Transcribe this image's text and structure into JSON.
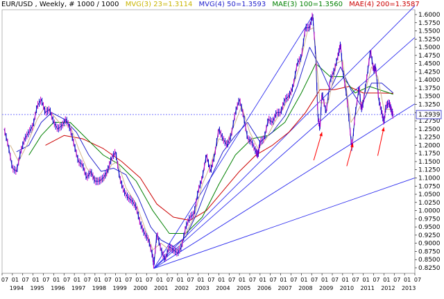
{
  "header": {
    "title": "EUR/USD , Weekly, # 1000 / 1000",
    "indicators": [
      {
        "text": "MVG(3) 23=1.3114",
        "color": "#c8b400"
      },
      {
        "text": "MVG(4) 50=1.3593",
        "color": "#2222cc"
      },
      {
        "text": "MAE(3) 100=1.3560",
        "color": "#008000"
      },
      {
        "text": "MAE(4) 200=1.3587",
        "color": "#cc0000"
      }
    ]
  },
  "chart_data": {
    "type": "line",
    "instrument": "EUR/USD",
    "ylim": [
      0.8125,
      1.6125
    ],
    "y_ticks": [
      "1.6000",
      "1.5750",
      "1.5500",
      "1.5250",
      "1.5000",
      "1.4750",
      "1.4500",
      "1.4250",
      "1.4000",
      "1.3750",
      "1.3500",
      "1.3250",
      "1.3000",
      "1.2750",
      "1.2500",
      "1.2250",
      "1.2000",
      "1.1750",
      "1.1500",
      "1.1250",
      "1.1000",
      "1.0750",
      "1.0500",
      "1.0250",
      "1.0000",
      "0.9750",
      "0.9500",
      "0.9250",
      "0.9000",
      "0.8750",
      "0.8500",
      "0.8250"
    ],
    "current_price_label": "1.2939",
    "current_price": 1.2939,
    "x_month_labels": [
      "07",
      "01",
      "07",
      "01",
      "07",
      "01",
      "07",
      "01",
      "07",
      "01",
      "07",
      "01",
      "07",
      "01",
      "07",
      "01",
      "07",
      "01",
      "07",
      "01",
      "07",
      "01",
      "07",
      "01",
      "07",
      "01",
      "07",
      "01",
      "07",
      "01",
      "07",
      "01",
      "07",
      "01",
      "07",
      "01",
      "07",
      "01",
      "07",
      "01",
      "07"
    ],
    "x_year_labels": [
      "1994",
      "1995",
      "1996",
      "1997",
      "1998",
      "1999",
      "2000",
      "2001",
      "2002",
      "2003",
      "2004",
      "2005",
      "2006",
      "2007",
      "2008",
      "2009",
      "2010",
      "2011",
      "2012",
      "2013"
    ],
    "x_start": 1993.5,
    "x_end": 2013.5,
    "series": [
      {
        "name": "EUR/USD",
        "color": "#3333aa",
        "points": [
          [
            1993.6,
            1.25
          ],
          [
            1993.8,
            1.2
          ],
          [
            1994.0,
            1.13
          ],
          [
            1994.2,
            1.12
          ],
          [
            1994.4,
            1.18
          ],
          [
            1994.6,
            1.22
          ],
          [
            1994.8,
            1.24
          ],
          [
            1995.0,
            1.26
          ],
          [
            1995.2,
            1.32
          ],
          [
            1995.4,
            1.34
          ],
          [
            1995.6,
            1.3
          ],
          [
            1995.8,
            1.31
          ],
          [
            1996.0,
            1.27
          ],
          [
            1996.2,
            1.25
          ],
          [
            1996.4,
            1.26
          ],
          [
            1996.6,
            1.28
          ],
          [
            1996.8,
            1.25
          ],
          [
            1997.0,
            1.2
          ],
          [
            1997.2,
            1.15
          ],
          [
            1997.4,
            1.14
          ],
          [
            1997.6,
            1.1
          ],
          [
            1997.8,
            1.12
          ],
          [
            1998.0,
            1.09
          ],
          [
            1998.2,
            1.09
          ],
          [
            1998.4,
            1.1
          ],
          [
            1998.6,
            1.12
          ],
          [
            1998.8,
            1.16
          ],
          [
            1999.0,
            1.18
          ],
          [
            1999.2,
            1.1
          ],
          [
            1999.4,
            1.06
          ],
          [
            1999.6,
            1.04
          ],
          [
            1999.8,
            1.03
          ],
          [
            2000.0,
            1.01
          ],
          [
            2000.2,
            0.96
          ],
          [
            2000.4,
            0.93
          ],
          [
            2000.6,
            0.91
          ],
          [
            2000.8,
            0.86
          ],
          [
            2000.85,
            0.83
          ],
          [
            2001.0,
            0.93
          ],
          [
            2001.2,
            0.88
          ],
          [
            2001.4,
            0.85
          ],
          [
            2001.6,
            0.89
          ],
          [
            2001.8,
            0.88
          ],
          [
            2002.0,
            0.87
          ],
          [
            2002.2,
            0.89
          ],
          [
            2002.4,
            0.95
          ],
          [
            2002.6,
            0.98
          ],
          [
            2002.8,
            0.99
          ],
          [
            2003.0,
            1.06
          ],
          [
            2003.2,
            1.1
          ],
          [
            2003.4,
            1.17
          ],
          [
            2003.6,
            1.12
          ],
          [
            2003.8,
            1.17
          ],
          [
            2004.0,
            1.25
          ],
          [
            2004.2,
            1.22
          ],
          [
            2004.4,
            1.2
          ],
          [
            2004.6,
            1.23
          ],
          [
            2004.8,
            1.3
          ],
          [
            2005.0,
            1.34
          ],
          [
            2005.2,
            1.29
          ],
          [
            2005.4,
            1.22
          ],
          [
            2005.6,
            1.21
          ],
          [
            2005.8,
            1.18
          ],
          [
            2005.9,
            1.17
          ],
          [
            2006.0,
            1.21
          ],
          [
            2006.2,
            1.22
          ],
          [
            2006.4,
            1.28
          ],
          [
            2006.6,
            1.27
          ],
          [
            2006.8,
            1.3
          ],
          [
            2007.0,
            1.3
          ],
          [
            2007.2,
            1.34
          ],
          [
            2007.4,
            1.35
          ],
          [
            2007.6,
            1.38
          ],
          [
            2007.8,
            1.45
          ],
          [
            2008.0,
            1.47
          ],
          [
            2008.2,
            1.56
          ],
          [
            2008.4,
            1.56
          ],
          [
            2008.55,
            1.6
          ],
          [
            2008.7,
            1.47
          ],
          [
            2008.8,
            1.29
          ],
          [
            2008.9,
            1.25
          ],
          [
            2009.0,
            1.36
          ],
          [
            2009.2,
            1.3
          ],
          [
            2009.4,
            1.4
          ],
          [
            2009.6,
            1.43
          ],
          [
            2009.8,
            1.48
          ],
          [
            2009.9,
            1.51
          ],
          [
            2010.0,
            1.43
          ],
          [
            2010.2,
            1.35
          ],
          [
            2010.4,
            1.22
          ],
          [
            2010.45,
            1.19
          ],
          [
            2010.6,
            1.29
          ],
          [
            2010.8,
            1.38
          ],
          [
            2010.9,
            1.31
          ],
          [
            2011.0,
            1.33
          ],
          [
            2011.2,
            1.42
          ],
          [
            2011.35,
            1.49
          ],
          [
            2011.5,
            1.43
          ],
          [
            2011.6,
            1.44
          ],
          [
            2011.75,
            1.34
          ],
          [
            2011.9,
            1.3
          ],
          [
            2012.0,
            1.27
          ],
          [
            2012.1,
            1.32
          ],
          [
            2012.25,
            1.33
          ],
          [
            2012.35,
            1.31
          ],
          [
            2012.45,
            1.29
          ]
        ]
      },
      {
        "name": "MVG(3) 23",
        "color": "#d2b48c",
        "points": [
          [
            1993.9,
            1.2
          ],
          [
            1994.3,
            1.15
          ],
          [
            1994.7,
            1.2
          ],
          [
            1995.2,
            1.28
          ],
          [
            1995.6,
            1.32
          ],
          [
            1996.0,
            1.29
          ],
          [
            1996.4,
            1.26
          ],
          [
            1996.8,
            1.26
          ],
          [
            1997.2,
            1.19
          ],
          [
            1997.6,
            1.13
          ],
          [
            1998.0,
            1.1
          ],
          [
            1998.4,
            1.09
          ],
          [
            1998.8,
            1.14
          ],
          [
            1999.1,
            1.15
          ],
          [
            1999.5,
            1.07
          ],
          [
            2000.0,
            1.02
          ],
          [
            2000.4,
            0.95
          ],
          [
            2000.8,
            0.88
          ],
          [
            2001.2,
            0.9
          ],
          [
            2001.6,
            0.88
          ],
          [
            2002.0,
            0.88
          ],
          [
            2002.4,
            0.93
          ],
          [
            2002.8,
            0.98
          ],
          [
            2003.2,
            1.08
          ],
          [
            2003.6,
            1.14
          ],
          [
            2004.0,
            1.22
          ],
          [
            2004.4,
            1.21
          ],
          [
            2004.8,
            1.27
          ],
          [
            2005.1,
            1.32
          ],
          [
            2005.5,
            1.24
          ],
          [
            2005.9,
            1.19
          ],
          [
            2006.3,
            1.22
          ],
          [
            2006.7,
            1.27
          ],
          [
            2007.1,
            1.31
          ],
          [
            2007.5,
            1.36
          ],
          [
            2007.9,
            1.44
          ],
          [
            2008.3,
            1.55
          ],
          [
            2008.6,
            1.56
          ],
          [
            2008.9,
            1.33
          ],
          [
            2009.3,
            1.33
          ],
          [
            2009.7,
            1.45
          ],
          [
            2010.0,
            1.46
          ],
          [
            2010.4,
            1.27
          ],
          [
            2010.7,
            1.3
          ],
          [
            2011.0,
            1.34
          ],
          [
            2011.4,
            1.44
          ],
          [
            2011.7,
            1.41
          ],
          [
            2012.0,
            1.31
          ],
          [
            2012.45,
            1.31
          ]
        ]
      },
      {
        "name": "MVG(4) 50",
        "color": "#2222cc",
        "points": [
          [
            1994.2,
            1.18
          ],
          [
            1994.8,
            1.2
          ],
          [
            1995.4,
            1.27
          ],
          [
            1995.9,
            1.3
          ],
          [
            1996.5,
            1.28
          ],
          [
            1997.1,
            1.24
          ],
          [
            1997.7,
            1.17
          ],
          [
            1998.3,
            1.12
          ],
          [
            1998.9,
            1.13
          ],
          [
            1999.5,
            1.11
          ],
          [
            2000.1,
            1.04
          ],
          [
            2000.7,
            0.95
          ],
          [
            2001.2,
            0.91
          ],
          [
            2001.8,
            0.89
          ],
          [
            2002.4,
            0.92
          ],
          [
            2003.0,
            1.0
          ],
          [
            2003.6,
            1.1
          ],
          [
            2004.2,
            1.18
          ],
          [
            2004.8,
            1.23
          ],
          [
            2005.4,
            1.27
          ],
          [
            2006.0,
            1.21
          ],
          [
            2006.6,
            1.24
          ],
          [
            2007.2,
            1.29
          ],
          [
            2007.8,
            1.38
          ],
          [
            2008.4,
            1.5
          ],
          [
            2008.9,
            1.44
          ],
          [
            2009.4,
            1.37
          ],
          [
            2009.9,
            1.44
          ],
          [
            2010.4,
            1.37
          ],
          [
            2010.9,
            1.32
          ],
          [
            2011.4,
            1.39
          ],
          [
            2011.9,
            1.39
          ],
          [
            2012.45,
            1.36
          ]
        ]
      },
      {
        "name": "MAE(3) 100",
        "color": "#008000",
        "points": [
          [
            1994.8,
            1.17
          ],
          [
            1995.4,
            1.23
          ],
          [
            1996.0,
            1.27
          ],
          [
            1996.8,
            1.27
          ],
          [
            1997.6,
            1.22
          ],
          [
            1998.4,
            1.17
          ],
          [
            1999.2,
            1.14
          ],
          [
            2000.0,
            1.09
          ],
          [
            2000.8,
            1.0
          ],
          [
            2001.6,
            0.93
          ],
          [
            2002.4,
            0.93
          ],
          [
            2003.2,
            0.98
          ],
          [
            2004.0,
            1.08
          ],
          [
            2004.8,
            1.17
          ],
          [
            2005.6,
            1.22
          ],
          [
            2006.4,
            1.23
          ],
          [
            2007.2,
            1.27
          ],
          [
            2008.0,
            1.36
          ],
          [
            2008.7,
            1.45
          ],
          [
            2009.4,
            1.41
          ],
          [
            2010.0,
            1.41
          ],
          [
            2010.6,
            1.36
          ],
          [
            2011.3,
            1.38
          ],
          [
            2012.45,
            1.356
          ]
        ]
      },
      {
        "name": "MAE(4) 200",
        "color": "#cc0000",
        "points": [
          [
            1995.6,
            1.2
          ],
          [
            1996.5,
            1.23
          ],
          [
            1997.4,
            1.22
          ],
          [
            1998.4,
            1.19
          ],
          [
            1999.3,
            1.15
          ],
          [
            2000.2,
            1.1
          ],
          [
            2001.0,
            1.02
          ],
          [
            2001.8,
            0.98
          ],
          [
            2002.6,
            0.97
          ],
          [
            2003.4,
            1.0
          ],
          [
            2004.2,
            1.06
          ],
          [
            2005.0,
            1.12
          ],
          [
            2005.8,
            1.17
          ],
          [
            2006.6,
            1.2
          ],
          [
            2007.4,
            1.24
          ],
          [
            2008.2,
            1.3
          ],
          [
            2008.9,
            1.37
          ],
          [
            2009.6,
            1.37
          ],
          [
            2010.3,
            1.38
          ],
          [
            2011.0,
            1.36
          ],
          [
            2011.8,
            1.36
          ],
          [
            2012.45,
            1.359
          ]
        ]
      }
    ],
    "trendlines": [
      {
        "from": [
          2000.85,
          0.823
        ],
        "to": [
          2008.58,
          1.6
        ]
      },
      {
        "from": [
          2000.85,
          0.823
        ],
        "to": [
          2013.5,
          1.627
        ]
      },
      {
        "from": [
          2000.85,
          0.823
        ],
        "to": [
          2013.5,
          1.53
        ]
      },
      {
        "from": [
          2000.85,
          0.823
        ],
        "to": [
          2013.5,
          1.327
        ]
      },
      {
        "from": [
          2000.85,
          0.823
        ],
        "to": [
          2013.5,
          1.1
        ]
      }
    ],
    "arrows": [
      {
        "from": [
          2008.6,
          1.154
        ],
        "to": [
          2009.0,
          1.24
        ]
      },
      {
        "from": [
          2010.2,
          1.136
        ],
        "to": [
          2010.5,
          1.206
        ]
      },
      {
        "from": [
          2011.7,
          1.168
        ],
        "to": [
          2012.0,
          1.255
        ]
      }
    ]
  }
}
